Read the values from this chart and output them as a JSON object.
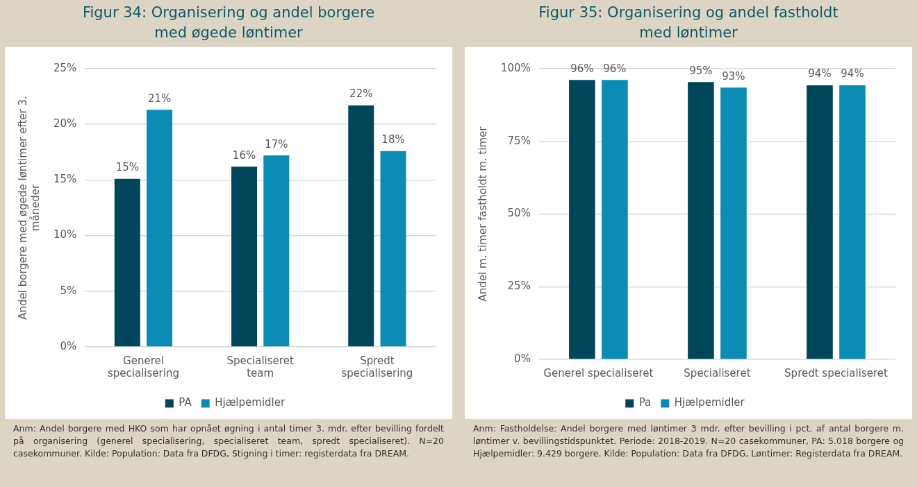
{
  "chart_data": [
    {
      "type": "bar",
      "title": "Figur 34: Organisering og andel borgere med øgede løntimer",
      "ylabel": "Andel borgere med øgede løntimer efter 3. måneder",
      "categories": [
        "Generel specialisering",
        "Specialiseret team",
        "Spredt specialisering"
      ],
      "series": [
        {
          "name": "PA",
          "color": "#00465a",
          "values": [
            15.1,
            16.2,
            21.7
          ],
          "value_labels": [
            "15%",
            "16%",
            "22%"
          ]
        },
        {
          "name": "Hjælpemidler",
          "color": "#0a8cb4",
          "values": [
            21.3,
            17.2,
            17.6
          ],
          "value_labels": [
            "21%",
            "17%",
            "18%"
          ]
        }
      ],
      "ylim": [
        0,
        25
      ],
      "yticks": [
        {
          "value": 0,
          "label": "0%"
        },
        {
          "value": 5,
          "label": "5%"
        },
        {
          "value": 10,
          "label": "10%"
        },
        {
          "value": 15,
          "label": "15%"
        },
        {
          "value": 20,
          "label": "20%"
        },
        {
          "value": 25,
          "label": "25%"
        }
      ],
      "grid": "y",
      "legend": "bottom",
      "annotations": [
        "Anm:  Andel borgere med HKO som har opnået øgning i antal timer 3. mdr. efter bevilling fordelt på organisering (generel specialisering, specialiseret team, spredt specialiseret). N=20 casekommuner. Kilde: Population: Data fra DFDG, Stigning i timer: registerdata fra DREAM."
      ]
    },
    {
      "type": "bar",
      "title": "Figur 35: Organisering og andel fastholdt med løntimer",
      "ylabel": "Andel m. timer fastholdt m. timer",
      "categories": [
        "Generel specialiseret",
        "Specialiseret",
        "Spredt specialiseret"
      ],
      "series": [
        {
          "name": "Pa",
          "color": "#00465a",
          "values": [
            96.1,
            95.4,
            94.3
          ],
          "value_labels": [
            "96%",
            "95%",
            "94%"
          ]
        },
        {
          "name": "Hjælpemidler",
          "color": "#0a8cb4",
          "values": [
            96.1,
            93.5,
            94.3
          ],
          "value_labels": [
            "96%",
            "93%",
            "94%"
          ]
        }
      ],
      "ylim": [
        0,
        100
      ],
      "yticks": [
        {
          "value": 0,
          "label": "0%"
        },
        {
          "value": 25,
          "label": "25%"
        },
        {
          "value": 50,
          "label": "50%"
        },
        {
          "value": 75,
          "label": "75%"
        },
        {
          "value": 100,
          "label": "100%"
        }
      ],
      "grid": "y",
      "legend": "bottom",
      "annotations": [
        "Anm: Fastholdelse: Andel borgere med løntimer 3 mdr. efter bevilling i pct. af antal borgere m. løntimer v. bevillingstidspunktet. Periode: 2018-2019. N=20 casekommuner, PA: 5.018 borgere og Hjælpemidler: 9.429 borgere. Kilde: Population: Data fra DFDG, Løntimer: Registerdata fra DREAM."
      ]
    }
  ]
}
